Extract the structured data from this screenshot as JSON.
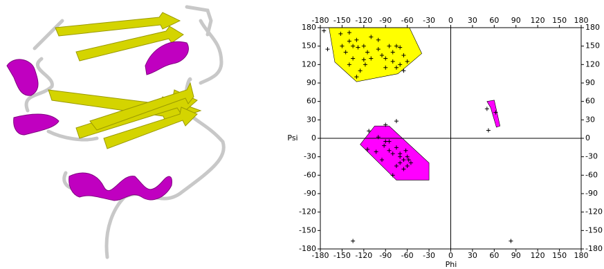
{
  "chart_data": {
    "type": "scatter",
    "x_label": "Phi",
    "y_label": "Psi",
    "xlim": [
      -180,
      180
    ],
    "ylim": [
      -180,
      180
    ],
    "xticks": [
      -180,
      -150,
      -120,
      -90,
      -60,
      -30,
      0,
      30,
      60,
      90,
      120,
      150,
      180
    ],
    "yticks": [
      -180,
      -150,
      -120,
      -90,
      -60,
      -30,
      0,
      30,
      60,
      90,
      120,
      150,
      180
    ],
    "regions": [
      {
        "color": "#ffff00",
        "x": [
          -168,
          -57,
          -40,
          -73,
          -130,
          -160
        ],
        "y": [
          180,
          180,
          138,
          105,
          92,
          124
        ]
      },
      {
        "color": "#ff00ff",
        "x": [
          -125,
          -105,
          -85,
          -30,
          -30,
          -75
        ],
        "y": [
          -10,
          20,
          20,
          -40,
          -68,
          -68
        ]
      },
      {
        "color": "#ff00ff",
        "x": [
          50,
          60,
          68,
          63,
          55
        ],
        "y": [
          60,
          62,
          20,
          18,
          50
        ]
      }
    ],
    "series": [
      {
        "color": "#000000",
        "x": [
          -175,
          -170,
          -152,
          -140,
          -140,
          -150,
          -145,
          -130,
          -128,
          -135,
          -120,
          -115,
          -118,
          -110,
          -125,
          -130,
          -100,
          -95,
          -90,
          -85,
          -80,
          -75,
          -70,
          -65,
          -80,
          -75,
          -70,
          -60,
          -65,
          -90,
          -100,
          -110,
          -140,
          -135,
          -120,
          -90,
          -75,
          -113,
          -115,
          -100,
          -90,
          -92,
          -85,
          -80,
          -95,
          -75,
          -70,
          -70,
          -65,
          -60,
          -60,
          -55,
          -65,
          -75,
          -80,
          -70,
          -62,
          -58,
          -85,
          -103,
          50,
          62,
          52,
          -135,
          83
        ],
        "y": [
          175,
          145,
          170,
          172,
          158,
          150,
          140,
          160,
          148,
          130,
          150,
          140,
          120,
          130,
          110,
          100,
          145,
          135,
          130,
          150,
          140,
          150,
          148,
          135,
          125,
          115,
          120,
          125,
          110,
          115,
          160,
          165,
          120,
          150,
          128,
          22,
          28,
          12,
          -18,
          2,
          -5,
          -12,
          -20,
          -25,
          -35,
          -15,
          -30,
          -40,
          -35,
          -30,
          -45,
          -40,
          -50,
          -45,
          -60,
          -25,
          -20,
          -35,
          -5,
          -22,
          48,
          42,
          13,
          -167,
          -167
        ]
      }
    ]
  }
}
